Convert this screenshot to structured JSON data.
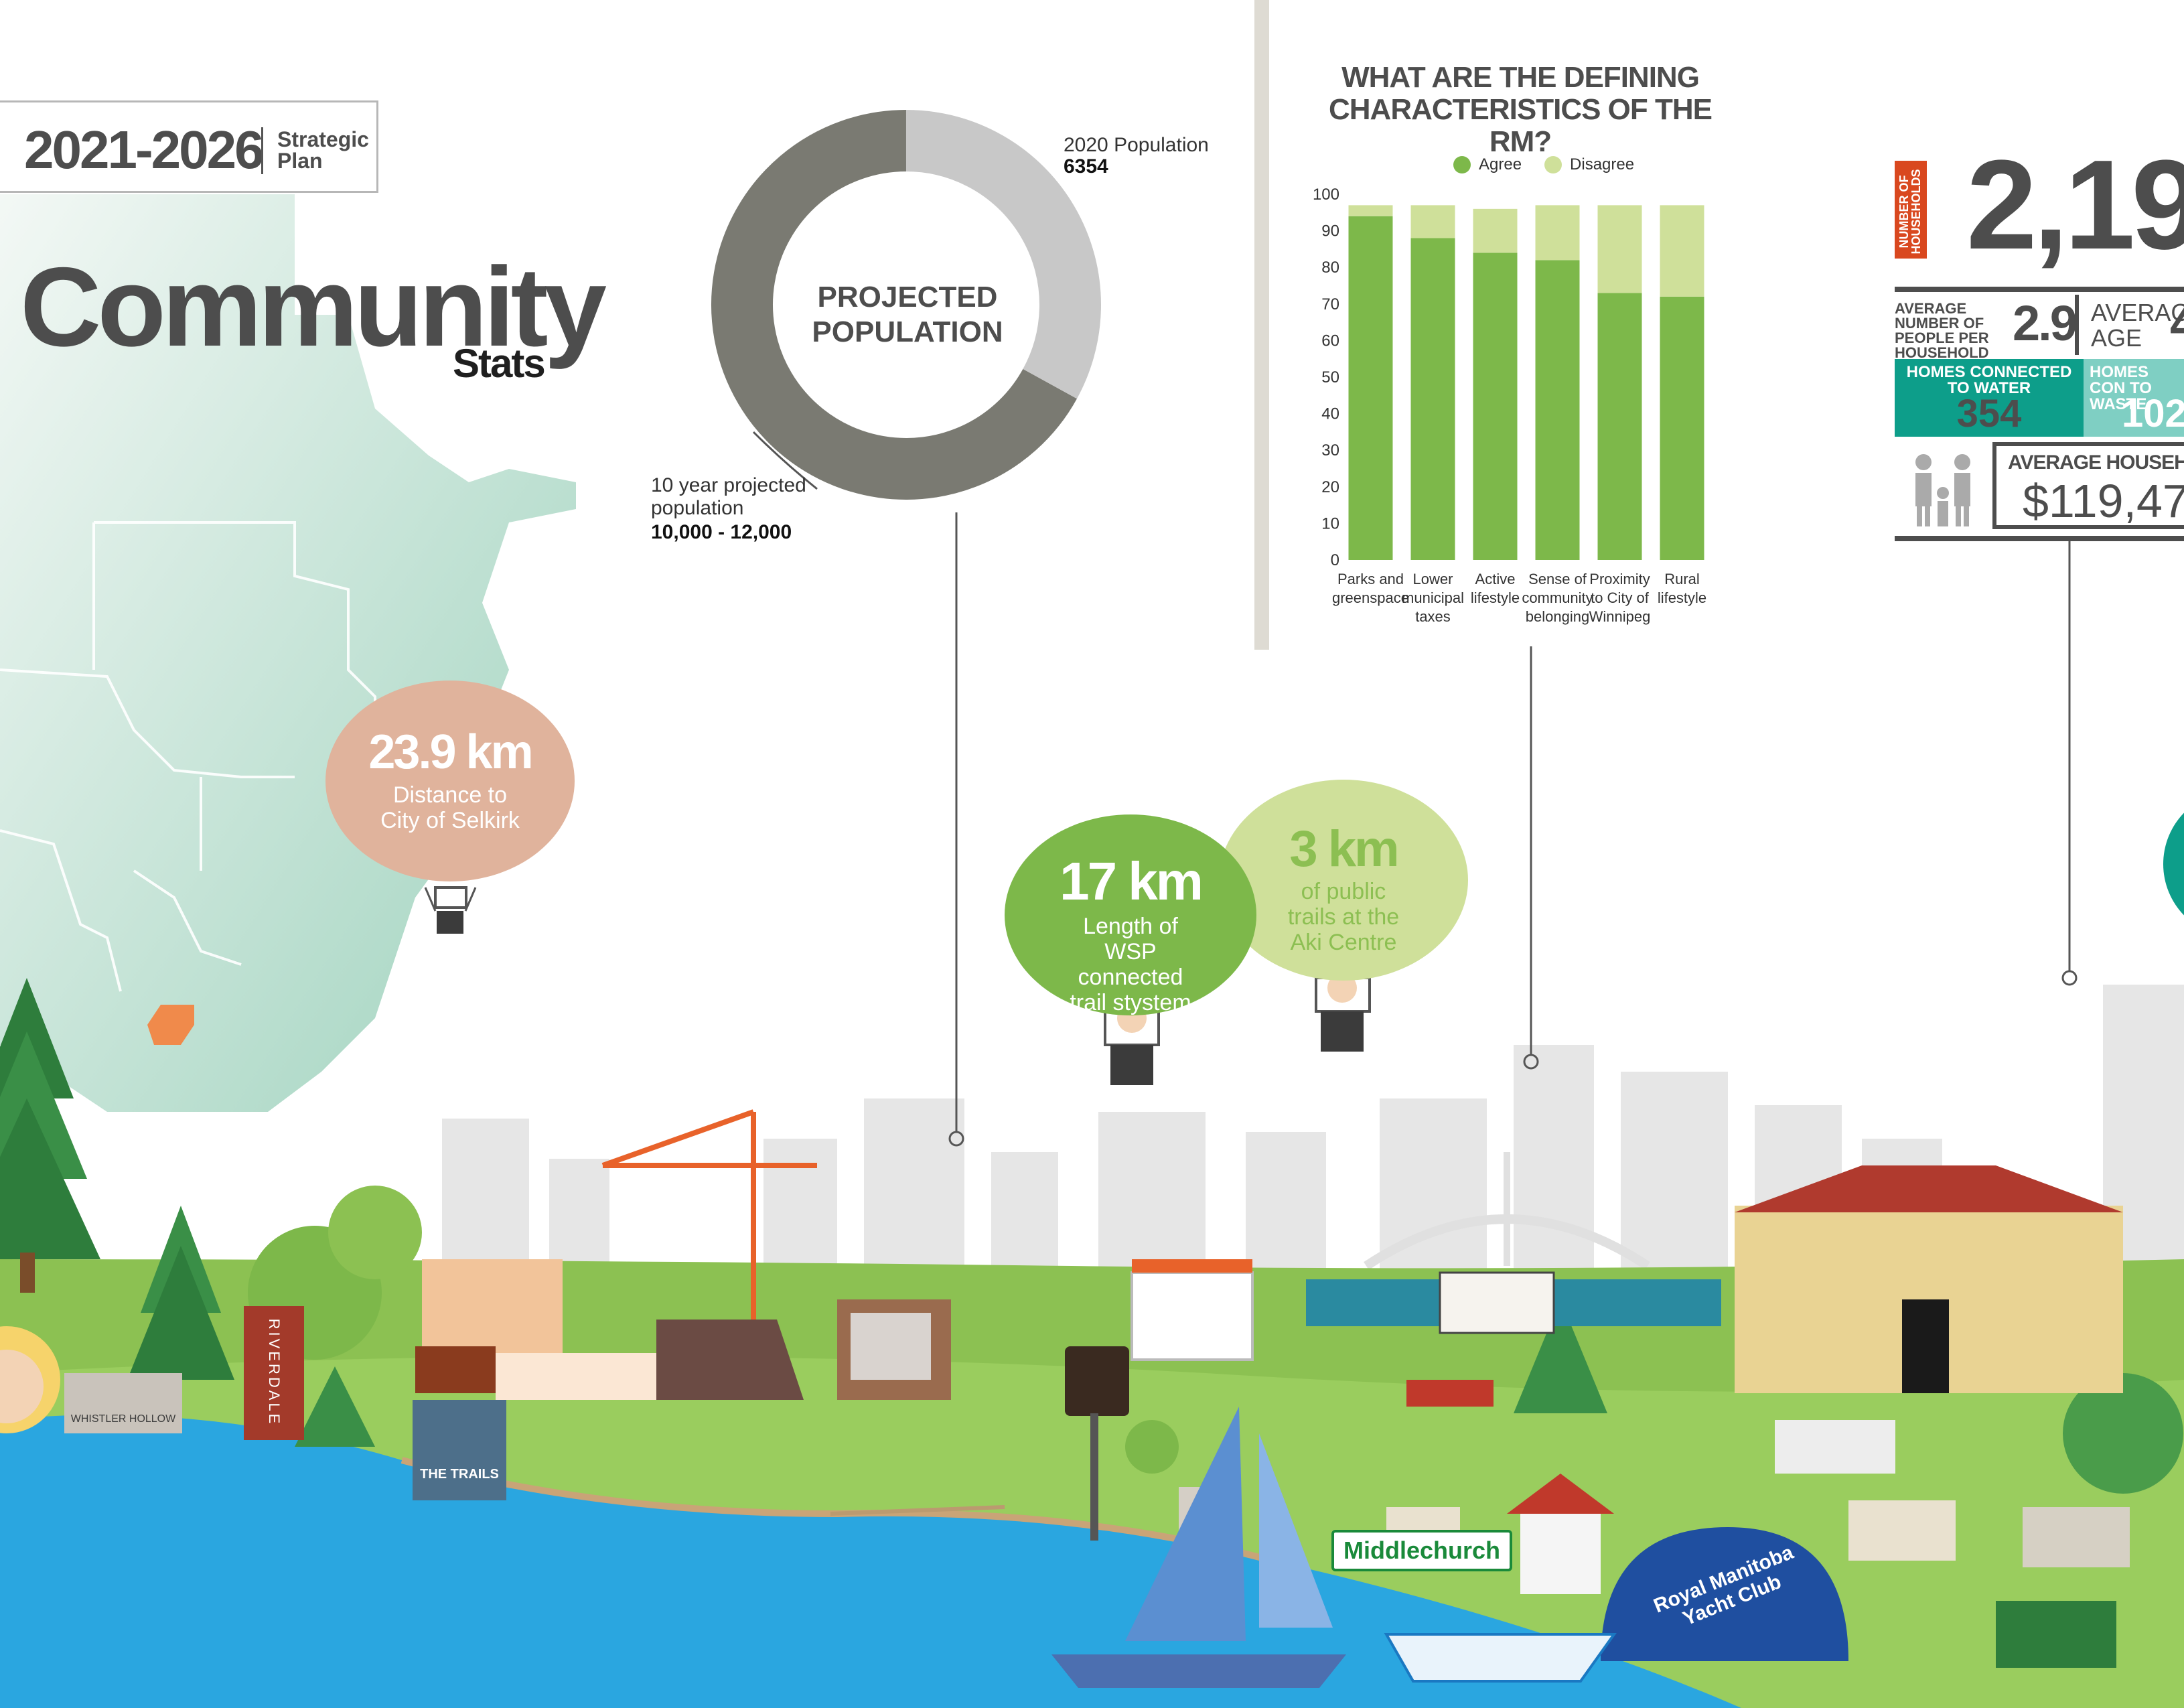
{
  "header": {
    "years": "2021-2026",
    "plan_label": "Strategic Plan",
    "title": "Community",
    "subtitle": "Stats"
  },
  "population": {
    "center_label": "PROJECTED POPULATION",
    "current_label": "2020 Population",
    "current_value": "6354",
    "projected_label": "10 year projected population",
    "projected_value": "10,000 - 12,000",
    "current_share": 0.33,
    "colors": {
      "current": "#c8c8c8",
      "projected": "#7a7a72"
    }
  },
  "chart_data": {
    "type": "bar",
    "title": "WHAT ARE THE DEFINING CHARACTERISTICS OF THE RM?",
    "legend_position": "top",
    "categories": [
      "Parks and greenspace",
      "Lower municipal taxes",
      "Active lifestyle",
      "Sense of community belonging",
      "Proximity to City of Winnipeg",
      "Rural lifestyle"
    ],
    "series": [
      {
        "name": "Agree",
        "values": [
          94,
          88,
          84,
          82,
          73,
          72
        ],
        "color": "#7db84a"
      },
      {
        "name": "Disagree",
        "values": [
          3,
          9,
          12,
          15,
          24,
          25
        ],
        "color": "#cfe09a"
      }
    ],
    "stacked": true,
    "ylim": [
      0,
      100
    ],
    "yticks": [
      "100",
      "90",
      "80",
      "70",
      "60",
      "50",
      "40",
      "30",
      "20",
      "10",
      "0"
    ],
    "grid": false
  },
  "households": {
    "vertical_label": "NUMBER OF HOUSEHOLDS",
    "count": "2,19",
    "people_label": "AVERAGE NUMBER OF PEOPLE PER HOUSEHOLD",
    "people_value": "2.9",
    "age_label": "AVERAGE AGE",
    "age_value": "4",
    "water_label": "HOMES CONNECTED TO WATER",
    "water_value": "354",
    "waste_label": "HOMES CON TO WASTE",
    "waste_value": "102",
    "income_label": "AVERAGE HOUSEHOLD",
    "income_value": "$119,47",
    "colors": {
      "water": "#0d9e8a",
      "waste": "#7fcfc3",
      "accent": "#d9481f"
    }
  },
  "balloons": {
    "selkirk": {
      "value": "23.9 km",
      "text": "Distance to City of Selkirk",
      "color": "#e0b39c"
    },
    "wsp": {
      "value": "17 km",
      "text": "Length of WSP connected trail stystem",
      "color": "#7db84a"
    },
    "aki": {
      "value": "3 km",
      "text": "of public trails at the Aki Centre",
      "color": "#cfe09a"
    }
  },
  "town": {
    "sign_middlechurch": "Middlechurch",
    "yacht_club": "Royal Manitoba Yacht Club",
    "riverdale": "RIVERDALE",
    "trails": "THE TRAILS",
    "whistler": "WHISTLER HOLLOW"
  }
}
